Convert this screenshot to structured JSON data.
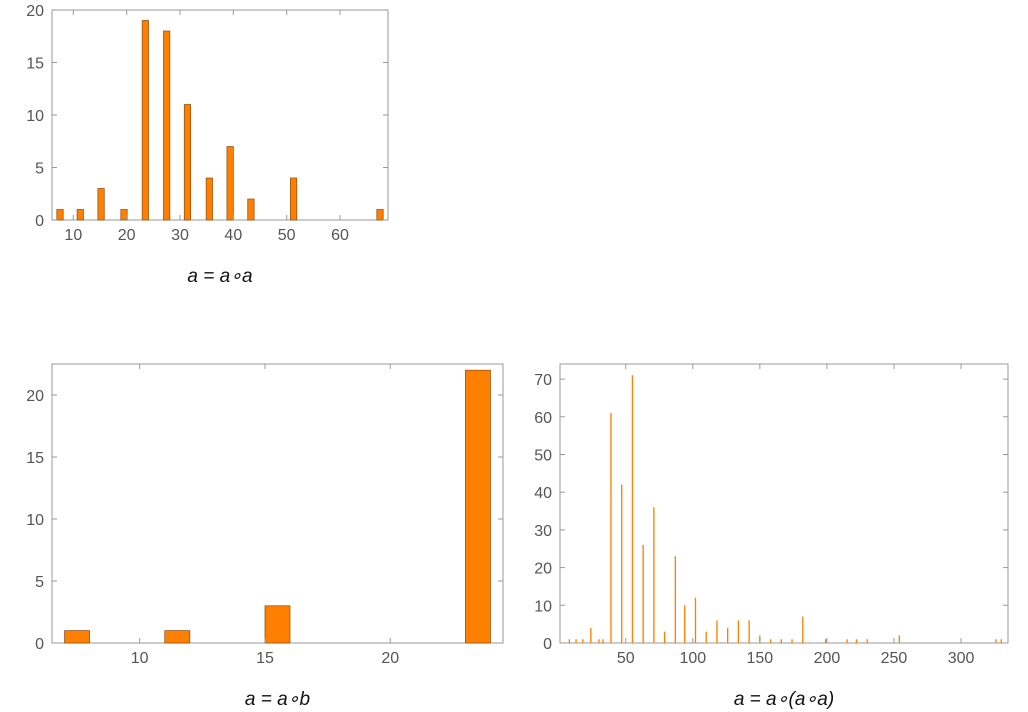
{
  "colors": {
    "bar_fill": "#ff8000",
    "bar_stroke": "#8a4a10",
    "frame": "#999999",
    "tick_text": "#555555"
  },
  "chart_data": [
    {
      "type": "bar",
      "xlabel": "a = a∘a",
      "xlim": [
        6,
        69
      ],
      "ylim": [
        0,
        20
      ],
      "bin_width": 1.2,
      "xticks": [
        10,
        20,
        30,
        40,
        50,
        60
      ],
      "yticks": [
        0,
        5,
        10,
        15,
        20
      ],
      "x": [
        7.5,
        11.3,
        15.2,
        19.5,
        23.5,
        27.5,
        31.4,
        35.5,
        39.4,
        43.3,
        51.3,
        67.5
      ],
      "values": [
        1,
        1,
        3,
        1,
        19,
        18,
        11,
        4,
        7,
        2,
        4,
        1
      ]
    },
    {
      "type": "bar",
      "xlabel": "a = a∘b",
      "xlim": [
        6.5,
        24.5
      ],
      "ylim": [
        0,
        22.5
      ],
      "bin_width": 1.0,
      "xticks": [
        10,
        15,
        20
      ],
      "yticks": [
        0,
        5,
        10,
        15,
        20
      ],
      "x": [
        7.5,
        11.5,
        15.5,
        23.5
      ],
      "values": [
        1,
        1,
        3,
        22
      ]
    },
    {
      "type": "bar",
      "xlabel": "a = a∘(a∘a)",
      "xlim": [
        1,
        335
      ],
      "ylim": [
        0,
        74
      ],
      "bin_width": 1.0,
      "xticks": [
        50,
        100,
        150,
        200,
        250,
        300
      ],
      "yticks": [
        0,
        10,
        20,
        30,
        40,
        50,
        60,
        70
      ],
      "x": [
        8,
        13,
        18,
        24,
        30,
        33,
        39,
        47,
        55,
        63,
        71,
        79,
        87,
        94,
        102,
        110,
        118,
        126,
        134,
        142,
        150,
        158,
        166,
        174,
        182,
        199,
        215,
        222,
        230,
        254,
        326,
        330
      ],
      "values": [
        1,
        1,
        1,
        4,
        1,
        1,
        61,
        42,
        71,
        26,
        36,
        3,
        23,
        10,
        12,
        3,
        6,
        4,
        6,
        6,
        2,
        1,
        1,
        1,
        7,
        1,
        1,
        1,
        1,
        2,
        1,
        1
      ]
    }
  ]
}
